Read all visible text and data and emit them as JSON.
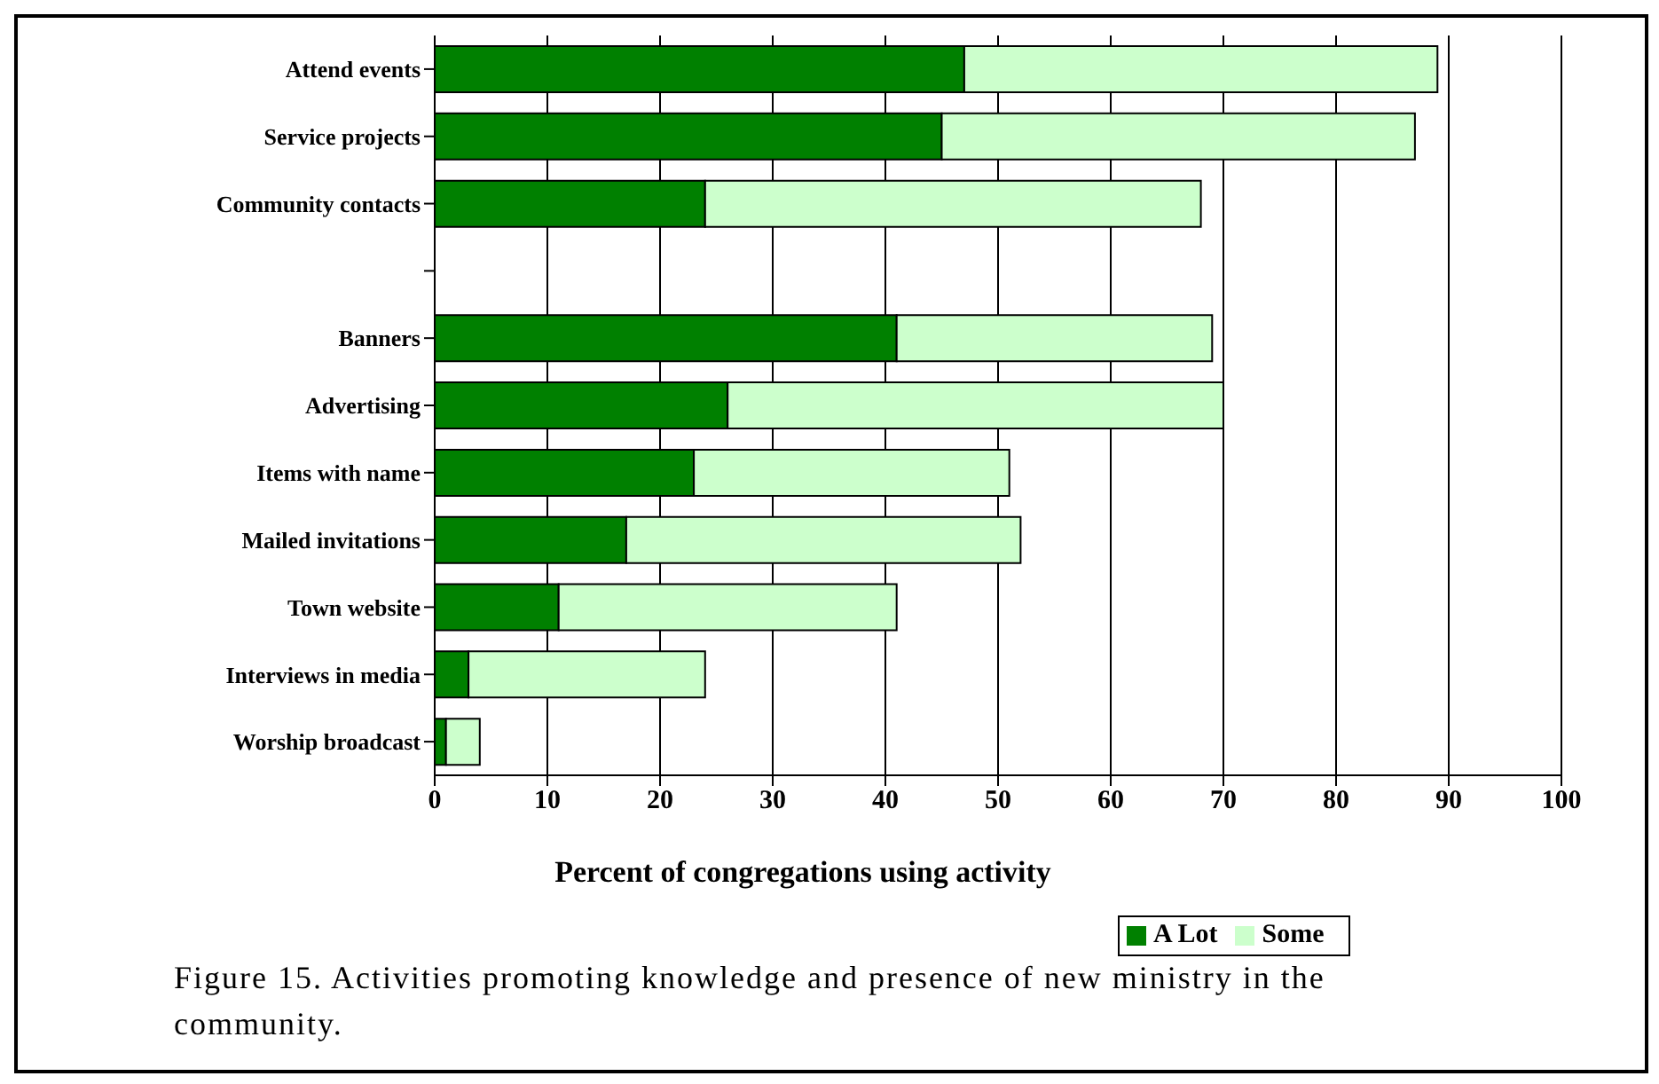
{
  "chart_data": {
    "type": "bar",
    "orientation": "horizontal",
    "stacked": true,
    "categories": [
      "Attend events",
      "Service projects",
      "Community contacts",
      null,
      "Banners",
      "Advertising",
      "Items with name",
      "Mailed invitations",
      "Town website",
      "Interviews in media",
      "Worship broadcast"
    ],
    "series": [
      {
        "name": "A Lot",
        "color": "#008000",
        "values": [
          47,
          45,
          24,
          null,
          41,
          26,
          23,
          17,
          11,
          3,
          1
        ]
      },
      {
        "name": "Some",
        "color": "#ccffcc",
        "values": [
          42,
          42,
          44,
          null,
          28,
          44,
          28,
          35,
          30,
          21,
          3
        ]
      }
    ],
    "xlim": [
      0,
      100
    ],
    "xticks": [
      0,
      10,
      20,
      30,
      40,
      50,
      60,
      70,
      80,
      90,
      100
    ],
    "xlabel": "Percent of congregations using activity",
    "grid": "x",
    "legend": "bottom",
    "annotations": [
      "Figure 15.  Activities promoting knowledge and presence of new ministry in the community."
    ]
  }
}
